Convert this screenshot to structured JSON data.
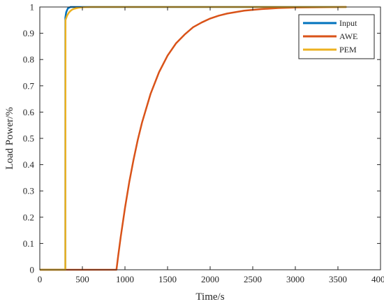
{
  "chart_data": {
    "type": "line",
    "title": "",
    "xlabel": "Time/s",
    "ylabel": "Load Power/%",
    "xlim": [
      0,
      4000
    ],
    "ylim": [
      0,
      1
    ],
    "xticks": [
      0,
      500,
      1000,
      1500,
      2000,
      2500,
      3000,
      3500,
      4000
    ],
    "yticks": [
      0,
      0.1,
      0.2,
      0.3,
      0.4,
      0.5,
      0.6,
      0.7,
      0.8,
      0.9,
      1
    ],
    "grid": false,
    "legend_position": "top-right",
    "series": [
      {
        "name": "Input",
        "color": "#0072BD",
        "x": [
          0,
          300,
          300,
          310,
          330,
          360,
          400,
          500,
          1000,
          2000,
          3600
        ],
        "y": [
          0,
          0,
          0.96,
          0.98,
          0.995,
          1,
          1,
          1,
          1,
          1,
          1
        ]
      },
      {
        "name": "AWE",
        "color": "#D95319",
        "x": [
          0,
          900,
          920,
          950,
          1000,
          1050,
          1100,
          1150,
          1200,
          1300,
          1400,
          1500,
          1600,
          1700,
          1800,
          1900,
          2000,
          2100,
          2200,
          2400,
          2600,
          2800,
          3000,
          3300,
          3600
        ],
        "y": [
          0,
          0,
          0.052,
          0.125,
          0.235,
          0.333,
          0.418,
          0.494,
          0.56,
          0.669,
          0.752,
          0.815,
          0.862,
          0.895,
          0.923,
          0.941,
          0.956,
          0.967,
          0.975,
          0.986,
          0.992,
          0.996,
          0.998,
          0.999,
          1
        ]
      },
      {
        "name": "PEM",
        "color": "#EDB120",
        "x": [
          0,
          300,
          302,
          310,
          320,
          340,
          360,
          380,
          400,
          450,
          500,
          600,
          800,
          1500,
          3600
        ],
        "y": [
          0,
          0,
          0.95,
          0.958,
          0.967,
          0.978,
          0.985,
          0.99,
          0.993,
          0.997,
          0.999,
          1,
          1,
          1,
          1
        ]
      }
    ]
  }
}
